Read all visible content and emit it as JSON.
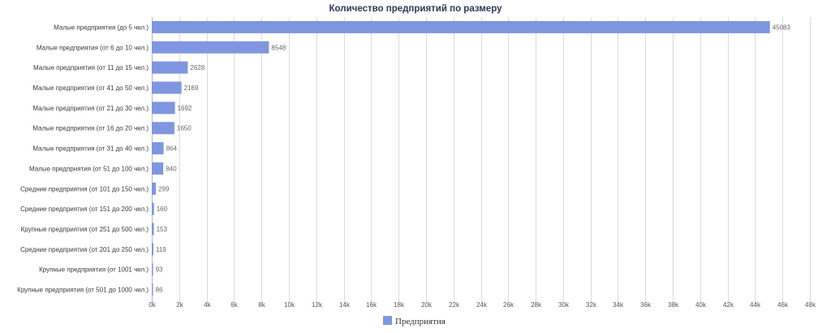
{
  "chart_data": {
    "type": "bar",
    "orientation": "horizontal",
    "title": "Количество предприятий по размеру",
    "categories": [
      "Малые предприятия (до 5 чел.)",
      "Малые предприятия (от 6 до 10 чел.)",
      "Малые предприятия (от 11 до 15 чел.)",
      "Малые предприятия (от 41 до 50 чел.)",
      "Малые предприятия (от 21 до 30 чел.)",
      "Малые предприятия (от 16 до 20 чел.)",
      "Малые предприятия (от 31 до 40 чел.)",
      "Малые предприятия (от 51 до 100 чел.)",
      "Средние предприятия (от 101 до 150 чел.)",
      "Средние предприятия (от 151 до 200 чел.)",
      "Крупные предприятия (от 251 до 500 чел.)",
      "Средние предприятия (от 201 до 250 чел.)",
      "Крупные предприятия (от 1001 чел.)",
      "Крупные предприятия (от 501 до 1000 чел.)"
    ],
    "series": [
      {
        "name": "Предприятия",
        "values": [
          45083,
          8548,
          2628,
          2169,
          1692,
          1650,
          864,
          840,
          299,
          160,
          153,
          119,
          93,
          86
        ]
      }
    ],
    "xlim": [
      0,
      48000
    ],
    "ticks": [
      0,
      2000,
      4000,
      6000,
      8000,
      10000,
      12000,
      14000,
      16000,
      18000,
      20000,
      22000,
      24000,
      26000,
      28000,
      30000,
      32000,
      34000,
      36000,
      38000,
      40000,
      42000,
      44000,
      46000,
      48000
    ],
    "tick_labels": [
      "0k",
      "2k",
      "4k",
      "6k",
      "8k",
      "10k",
      "12k",
      "14k",
      "16k",
      "18k",
      "20k",
      "22k",
      "24k",
      "26k",
      "28k",
      "30k",
      "32k",
      "34k",
      "36k",
      "38k",
      "40k",
      "42k",
      "44k",
      "46k",
      "48k"
    ],
    "grid": true,
    "legend_position": "bottom",
    "bar_color": "#7f96e0"
  }
}
